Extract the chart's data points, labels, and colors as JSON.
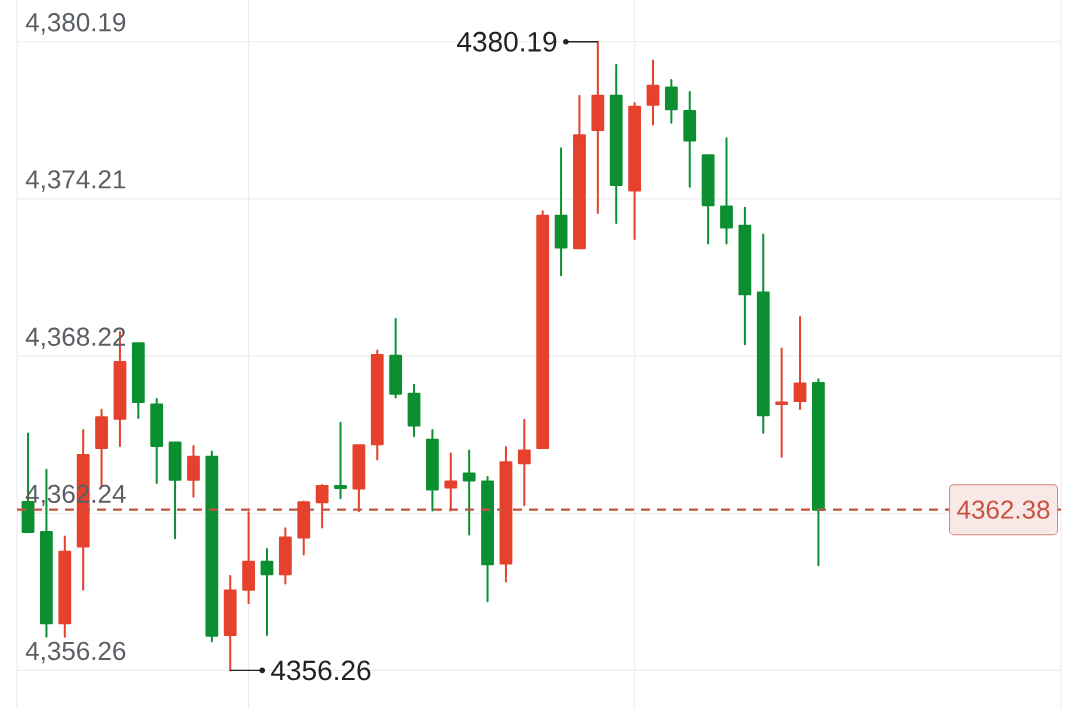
{
  "chart_data": {
    "type": "candlestick",
    "categories": [
      null,
      null,
      null,
      null,
      null,
      null,
      null,
      null,
      null,
      null,
      null,
      null,
      null,
      null,
      null,
      null,
      null,
      null,
      null,
      null,
      null,
      null,
      null,
      null,
      null,
      null,
      null,
      null,
      null,
      null,
      null,
      null,
      null,
      null,
      null,
      null,
      null,
      null,
      null,
      null,
      null,
      null,
      null,
      null
    ],
    "ohlc": [
      [
        4362.67,
        4365.28,
        4361.53,
        4361.53
      ],
      [
        4361.53,
        4363.9,
        4357.54,
        4358.06
      ],
      [
        4358.06,
        4361.36,
        4357.54,
        4360.78
      ],
      [
        4360.98,
        4365.41,
        4359.33,
        4364.46
      ],
      [
        4364.73,
        4366.18,
        4363.28,
        4365.9
      ],
      [
        4365.84,
        4369.14,
        4364.8,
        4368.0
      ],
      [
        4368.71,
        4368.71,
        4365.87,
        4366.48
      ],
      [
        4366.38,
        4366.59,
        4363.39,
        4364.8
      ],
      [
        4364.94,
        4364.94,
        4361.29,
        4363.52
      ],
      [
        4363.52,
        4364.8,
        4362.87,
        4364.39
      ],
      [
        4364.39,
        4364.59,
        4357.37,
        4357.58
      ],
      [
        4357.61,
        4359.85,
        4356.26,
        4359.3
      ],
      [
        4359.33,
        4362.28,
        4358.82,
        4360.4
      ],
      [
        4360.4,
        4360.88,
        4357.61,
        4359.92
      ],
      [
        4359.92,
        4361.67,
        4359.57,
        4361.32
      ],
      [
        4361.32,
        4362.69,
        4360.67,
        4362.66
      ],
      [
        4362.66,
        4363.32,
        4361.7,
        4363.28
      ],
      [
        4363.28,
        4365.69,
        4362.81,
        4363.2
      ],
      [
        4363.18,
        4364.83,
        4362.32,
        4364.83
      ],
      [
        4364.87,
        4368.44,
        4364.29,
        4368.27
      ],
      [
        4368.24,
        4369.64,
        4366.65,
        4366.79
      ],
      [
        4366.79,
        4367.13,
        4365.17,
        4365.58
      ],
      [
        4365.04,
        4365.41,
        4362.35,
        4363.15
      ],
      [
        4363.22,
        4364.52,
        4362.35,
        4363.45
      ],
      [
        4363.76,
        4364.63,
        4361.43,
        4363.49
      ],
      [
        4363.45,
        4363.62,
        4358.89,
        4360.3
      ],
      [
        4360.33,
        4364.76,
        4359.64,
        4364.18
      ],
      [
        4364.15,
        4365.8,
        4362.55,
        4364.63
      ],
      [
        4364.73,
        4373.74,
        4364.73,
        4373.57
      ],
      [
        4373.57,
        4376.14,
        4371.3,
        4372.36
      ],
      [
        4372.33,
        4378.13,
        4372.33,
        4376.63
      ],
      [
        4376.83,
        4380.19,
        4373.67,
        4378.13
      ],
      [
        4378.13,
        4379.31,
        4373.29,
        4374.74
      ],
      [
        4374.53,
        4377.86,
        4372.68,
        4377.72
      ],
      [
        4377.79,
        4379.48,
        4377.04,
        4378.52
      ],
      [
        4378.45,
        4378.73,
        4377.11,
        4377.62
      ],
      [
        4377.55,
        4378.28,
        4374.67,
        4376.43
      ],
      [
        4375.87,
        4375.87,
        4372.51,
        4373.97
      ],
      [
        4373.92,
        4376.52,
        4372.51,
        4373.12
      ],
      [
        4373.19,
        4373.87,
        4368.68,
        4370.58
      ],
      [
        4370.65,
        4372.85,
        4365.31,
        4365.97
      ],
      [
        4366.4,
        4368.51,
        4364.39,
        4366.46
      ],
      [
        4366.52,
        4369.71,
        4366.21,
        4367.18
      ],
      [
        4367.2,
        4367.34,
        4360.26,
        4362.38
      ]
    ],
    "colors": [
      "#0c8f30",
      "#0c8f30",
      "#e5412d",
      "#e5412d",
      "#e5412d",
      "#e5412d",
      "#0c8f30",
      "#0c8f30",
      "#0c8f30",
      "#e5412d",
      "#0c8f30",
      "#e5412d",
      "#e5412d",
      "#0c8f30",
      "#e5412d",
      "#e5412d",
      "#e5412d",
      "#0c8f30",
      "#e5412d",
      "#e5412d",
      "#0c8f30",
      "#0c8f30",
      "#0c8f30",
      "#e5412d",
      "#0c8f30",
      "#0c8f30",
      "#e5412d",
      "#e5412d",
      "#e5412d",
      "#0c8f30",
      "#e5412d",
      "#e5412d",
      "#0c8f30",
      "#e5412d",
      "#e5412d",
      "#0c8f30",
      "#0c8f30",
      "#0c8f30",
      "#0c8f30",
      "#0c8f30",
      "#0c8f30",
      "#e5412d",
      "#e5412d",
      "#0c8f30"
    ],
    "ylim": [
      4354.83,
      4381.78
    ],
    "yticks": [
      {
        "value": 4356.26,
        "label": "4,356.26"
      },
      {
        "value": 4362.24,
        "label": "4,362.24"
      },
      {
        "value": 4368.22,
        "label": "4,368.22"
      },
      {
        "value": 4374.21,
        "label": "4,374.21"
      },
      {
        "value": 4380.19,
        "label": "4,380.19"
      }
    ],
    "tick_labels": "y",
    "grid": true,
    "ref_lines": [
      {
        "axis": "y",
        "value": 4362.38,
        "label": "4362.38",
        "color": "#c9513f",
        "line_style": "dashed"
      }
    ],
    "annotations": [
      "4380.19",
      "4356.26"
    ]
  }
}
